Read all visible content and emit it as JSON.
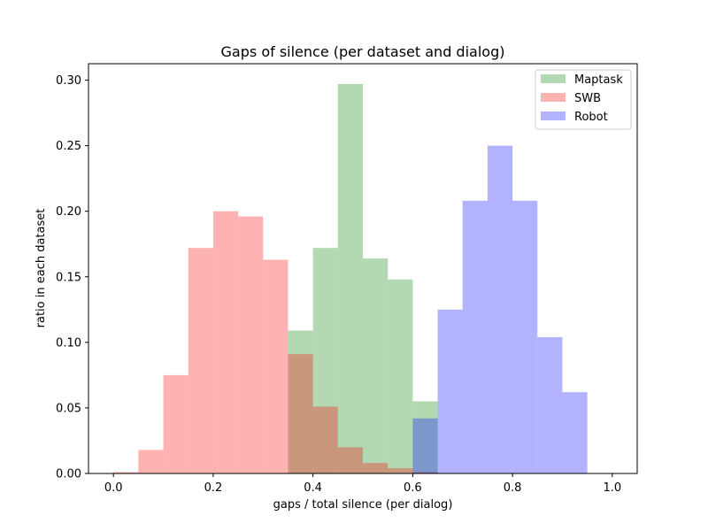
{
  "chart_data": {
    "type": "bar",
    "title": "Gaps of silence (per dataset and dialog)",
    "xlabel": "gaps / total silence (per dialog)",
    "ylabel": "ratio in each dataset",
    "xlim": [
      -0.05,
      1.05
    ],
    "ylim": [
      0,
      0.3125
    ],
    "xticks": [
      "0.0",
      "0.2",
      "0.4",
      "0.6",
      "0.8",
      "1.0"
    ],
    "yticks": [
      "0.00",
      "0.05",
      "0.10",
      "0.15",
      "0.20",
      "0.25",
      "0.30"
    ],
    "grid": false,
    "legend_position": "top-right",
    "bin_edges": [
      0.0,
      0.05,
      0.1,
      0.15,
      0.2,
      0.25,
      0.3,
      0.35,
      0.4,
      0.45,
      0.5,
      0.55,
      0.6,
      0.65,
      0.7,
      0.75,
      0.8,
      0.85,
      0.9,
      0.95,
      1.0
    ],
    "series": [
      {
        "name": "Maptask",
        "color": "#008000",
        "opacity": 0.3,
        "values": [
          0,
          0,
          0,
          0,
          0,
          0,
          0,
          0.109,
          0.172,
          0.297,
          0.164,
          0.148,
          0.055,
          0,
          0,
          0,
          0,
          0,
          0,
          0
        ]
      },
      {
        "name": "SWB",
        "color": "#ff0000",
        "opacity": 0.3,
        "values": [
          0.001,
          0.018,
          0.075,
          0.172,
          0.2,
          0.196,
          0.163,
          0.091,
          0.051,
          0.02,
          0.008,
          0.004,
          0.001,
          0,
          0,
          0,
          0,
          0,
          0,
          0
        ]
      },
      {
        "name": "Robot",
        "color": "#0000ff",
        "opacity": 0.3,
        "values": [
          0,
          0,
          0,
          0,
          0,
          0,
          0,
          0,
          0,
          0,
          0,
          0,
          0.042,
          0.125,
          0.208,
          0.25,
          0.208,
          0.104,
          0.062,
          0
        ]
      }
    ]
  }
}
